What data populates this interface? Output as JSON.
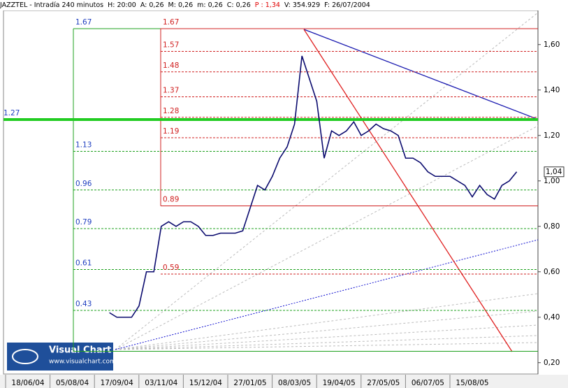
{
  "header": [
    "JAZZTEL - Intradía 240 minutos",
    "H: 20:00",
    "A: 0,26",
    "M: 0,26",
    "m: 0,26",
    "C: 0,26",
    "P : 1,34",
    "V: 354.929",
    "F: 26/07/2004"
  ],
  "logo": {
    "title": "Visual Chart",
    "url": "www.visualchart.com"
  },
  "chart_data": {
    "type": "line",
    "color": "#0a0a6e",
    "categories": [
      "18/06/04",
      null,
      null,
      null,
      null,
      null,
      "05/08/04",
      null,
      null,
      null,
      null,
      null,
      "17/09/04",
      null,
      null,
      null,
      null,
      null,
      "03/11/04",
      null,
      null,
      null,
      null,
      null,
      "15/12/04",
      null,
      null,
      null,
      null,
      null,
      "27/01/05",
      null,
      null,
      null,
      null,
      null,
      "08/03/05",
      null,
      null,
      null,
      null,
      null,
      "19/04/05",
      null,
      null,
      null,
      null,
      null,
      "27/05/05",
      null,
      null,
      null,
      null,
      null,
      "06/07/05",
      null,
      null,
      null,
      null,
      null,
      "15/08/05",
      null,
      null,
      null,
      null,
      null,
      null
    ],
    "values": [
      null,
      null,
      null,
      null,
      null,
      null,
      null,
      null,
      null,
      null,
      null,
      0.42,
      0.4,
      0.4,
      0.4,
      0.45,
      0.6,
      0.6,
      0.8,
      0.82,
      0.8,
      0.82,
      0.82,
      0.8,
      0.76,
      0.76,
      0.77,
      0.77,
      0.77,
      0.78,
      0.88,
      0.98,
      0.96,
      1.02,
      1.1,
      1.15,
      1.25,
      1.55,
      1.45,
      1.35,
      1.1,
      1.22,
      1.2,
      1.22,
      1.26,
      1.2,
      1.22,
      1.25,
      1.23,
      1.22,
      1.2,
      1.1,
      1.1,
      1.08,
      1.04,
      1.02,
      1.02,
      1.02,
      1.0,
      0.98,
      0.93,
      0.98,
      0.94,
      0.92,
      0.98,
      1.0,
      1.04
    ],
    "last_label": "1,04",
    "ylim": [
      0.15,
      1.75
    ],
    "yticks": [
      {
        "value": 0.2,
        "label": "0,20"
      },
      {
        "value": 0.4,
        "label": "0,40"
      },
      {
        "value": 0.6,
        "label": "0,60"
      },
      {
        "value": 0.8,
        "label": "0,80"
      },
      {
        "value": 1.0,
        "label": "1,00"
      },
      {
        "value": 1.2,
        "label": "1,20"
      },
      {
        "value": 1.4,
        "label": "1,40"
      },
      {
        "value": 1.6,
        "label": "1,60"
      }
    ],
    "levels_red": [
      1.67,
      1.57,
      1.48,
      1.37,
      1.28,
      1.19,
      0.89,
      0.59
    ],
    "levels_green": [
      1.67,
      1.13,
      0.96,
      0.79,
      0.61,
      0.43
    ],
    "level_base": 0.25,
    "level_main": 1.27
  }
}
